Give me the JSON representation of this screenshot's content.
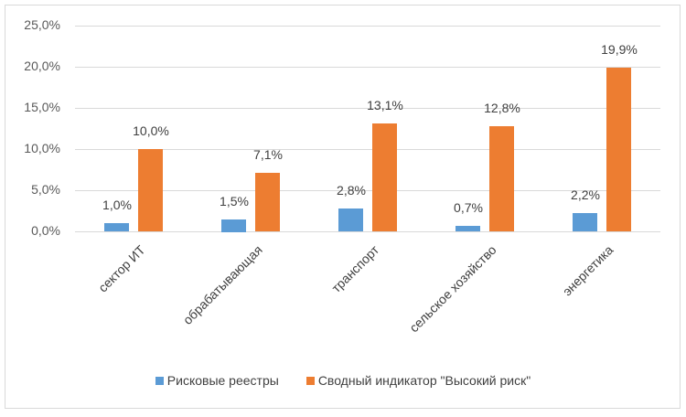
{
  "chart_data": {
    "type": "bar",
    "title": "",
    "xlabel": "",
    "ylabel": "",
    "ylim": [
      0,
      25
    ],
    "y_ticks": [
      "0,0%",
      "5,0%",
      "10,0%",
      "15,0%",
      "20,0%",
      "25,0%"
    ],
    "grid": true,
    "legend_position": "bottom",
    "categories": [
      "сектор ИТ",
      "обрабатывающая",
      "транспорт",
      "сельское хозяйство",
      "энергетика"
    ],
    "series": [
      {
        "name": "Рисковые реестры",
        "color": "#5b9bd5",
        "values": [
          1.0,
          1.5,
          2.8,
          0.7,
          2.2
        ],
        "labels": [
          "1,0%",
          "1,5%",
          "2,8%",
          "0,7%",
          "2,2%"
        ]
      },
      {
        "name": "Сводный индикатор \"Высокий риск\"",
        "color": "#ed7d31",
        "values": [
          10.0,
          7.1,
          13.1,
          12.8,
          19.9
        ],
        "labels": [
          "10,0%",
          "7,1%",
          "13,1%",
          "12,8%",
          "19,9%"
        ]
      }
    ]
  },
  "legend": {
    "items": [
      {
        "label": "Рисковые реестры",
        "color": "#5b9bd5"
      },
      {
        "label": "Сводный индикатор \"Высокий риск\"",
        "color": "#ed7d31"
      }
    ]
  }
}
